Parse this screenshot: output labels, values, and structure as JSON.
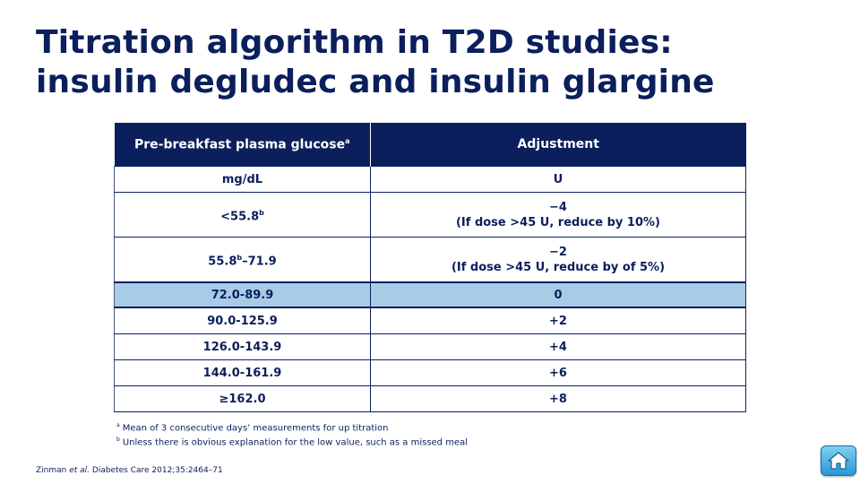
{
  "title": {
    "line1": "Titration algorithm in T2D studies:",
    "line2": "insulin degludec and insulin glargine"
  },
  "table": {
    "header": {
      "col1": "Pre-breakfast plasma glucose",
      "col1_sup": "a",
      "col2": "Adjustment"
    },
    "units": {
      "col1": "mg/dL",
      "col2": "U"
    },
    "rows": [
      {
        "range": "<55.8",
        "range_sup": "b",
        "range_tail": "",
        "adj": "−4",
        "adj_note": "(If dose >45 U, reduce by 10%)"
      },
      {
        "range": "55.8",
        "range_sup": "b",
        "range_tail": "–71.9",
        "adj": "−2",
        "adj_note": "(If dose >45 U, reduce by of 5%)"
      },
      {
        "range": "72.0-89.9",
        "adj": "0",
        "highlighted": true
      },
      {
        "range": "90.0-125.9",
        "adj": "+2"
      },
      {
        "range": "126.0-143.9",
        "adj": "+4"
      },
      {
        "range": "144.0-161.9",
        "adj": "+6"
      },
      {
        "range": "≥162.0",
        "adj": "+8"
      }
    ]
  },
  "footnotes": [
    {
      "mark": "a",
      "text": "Mean of 3 consecutive days’ measurements for up titration"
    },
    {
      "mark": "b",
      "text": "Unless there is obvious explanation for the low value, such as a missed meal"
    }
  ],
  "reference": {
    "authors": "Zinman ",
    "etal": "et al.",
    "journal": " Diabetes Care ",
    "citation": "2012;35:2464–71"
  },
  "home_button": {
    "icon": "home-icon"
  },
  "colors": {
    "navy": "#0b1f5c",
    "highlight": "#a9cce6",
    "button": "#2a97d4"
  }
}
